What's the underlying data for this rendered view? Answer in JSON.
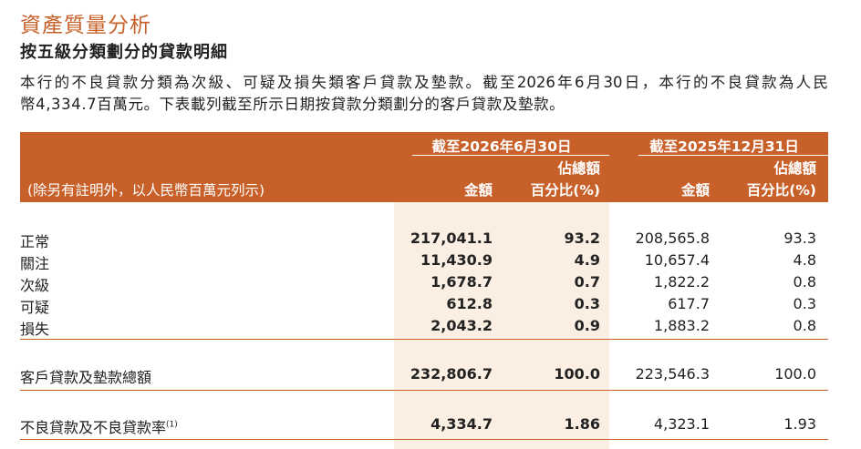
{
  "title": "資產質量分析",
  "subtitle": "按五級分類劃分的貸款明細",
  "paragraph": [
    "本行的不良貸款分類為次級、可疑及損失類客戶貸款及墊款。截至2026年6月30日，本行的不良貸款為人民",
    "幣4,334.7百萬元。下表載列截至所示日期按貸款分類劃分的客戶貸款及墊款。"
  ],
  "table": {
    "periods": [
      "截至2026年6月30日",
      "截至2025年12月31日"
    ],
    "unit_note": "(除另有註明外，以人民幣百萬元列示)",
    "columns": [
      {
        "lines": [
          "金額"
        ]
      },
      {
        "lines": [
          "佔總額",
          "百分比(%)"
        ]
      },
      {
        "lines": [
          "金額"
        ]
      },
      {
        "lines": [
          "佔總額",
          "百分比(%)"
        ]
      }
    ],
    "rows": [
      {
        "label": "正常",
        "values": [
          "217,041.1",
          "93.2",
          "208,565.8",
          "93.3"
        ]
      },
      {
        "label": "關注",
        "values": [
          "11,430.9",
          "4.9",
          "10,657.4",
          "4.8"
        ]
      },
      {
        "label": "次級",
        "values": [
          "1,678.7",
          "0.7",
          "1,822.2",
          "0.8"
        ]
      },
      {
        "label": "可疑",
        "values": [
          "612.8",
          "0.3",
          "617.7",
          "0.3"
        ]
      },
      {
        "label": "損失",
        "values": [
          "2,043.2",
          "0.9",
          "1,883.2",
          "0.8"
        ]
      },
      {
        "label": "客戶貸款及墊款總額",
        "values": [
          "232,806.7",
          "100.0",
          "223,546.3",
          "100.0"
        ]
      },
      {
        "label": "不良貸款及不良貸款率",
        "note": "(1)",
        "values": [
          "4,334.7",
          "1.86",
          "4,323.1",
          "1.93"
        ]
      }
    ]
  }
}
